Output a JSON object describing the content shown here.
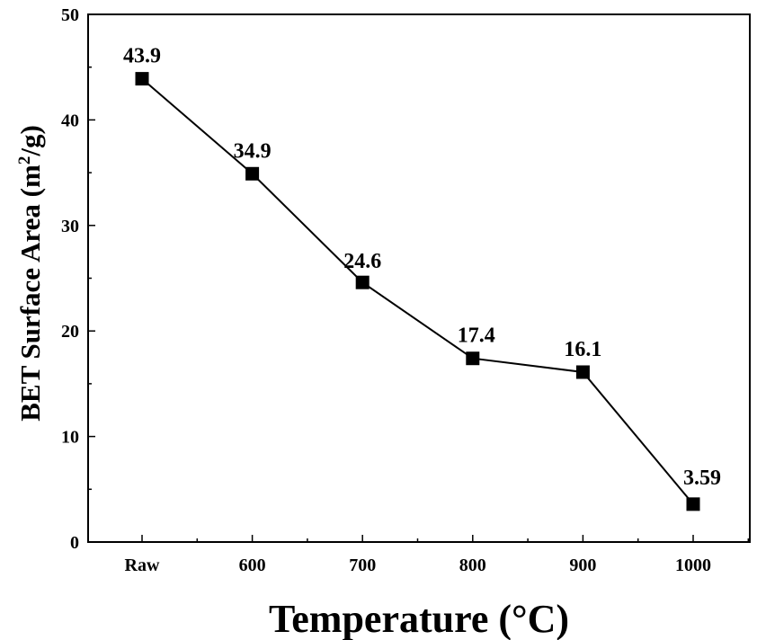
{
  "chart_data": {
    "type": "line",
    "categories": [
      "Raw",
      "600",
      "700",
      "800",
      "900",
      "1000"
    ],
    "series": [
      {
        "values": [
          43.9,
          34.9,
          24.6,
          17.4,
          16.1,
          3.59
        ],
        "data_labels": [
          "43.9",
          "34.9",
          "24.6",
          "17.4",
          "16.1",
          "3.59"
        ],
        "color": "#000000",
        "marker": "square"
      }
    ],
    "title": "",
    "xlabel": "Temperature (°C)",
    "ylabel_main": "BET Surface Area (m",
    "ylabel_sup": "2",
    "ylabel_end": "/g)",
    "ylim": [
      0,
      50
    ],
    "yticks": [
      0,
      10,
      20,
      30,
      40,
      50
    ],
    "ytick_labels": [
      "0",
      "10",
      "20",
      "30",
      "40",
      "50"
    ],
    "grid": false,
    "legend": "none"
  }
}
